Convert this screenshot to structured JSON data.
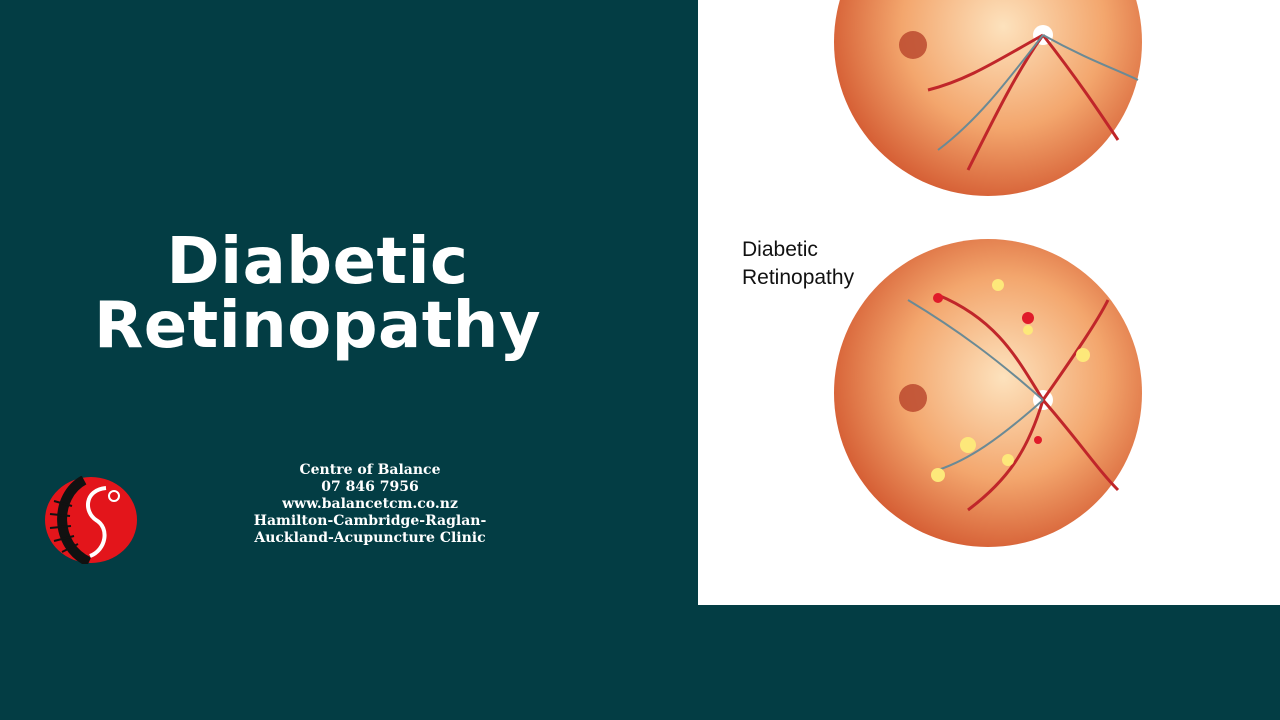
{
  "title": {
    "line1": "Diabetic",
    "line2": "Retinopathy"
  },
  "contact": {
    "name": "Centre of Balance",
    "phone": "07 846 7956",
    "website": "www.balancetcm.co.nz",
    "locations_line1": "Hamilton-Cambridge-Raglan-",
    "locations_line2": "Auckland-Acupuncture Clinic"
  },
  "illustration": {
    "label_line1": "Diabetic",
    "label_line2": "Retinopathy"
  },
  "colors": {
    "background": "#033d44",
    "panel": "#ffffff",
    "logo_red": "#e3151b"
  }
}
